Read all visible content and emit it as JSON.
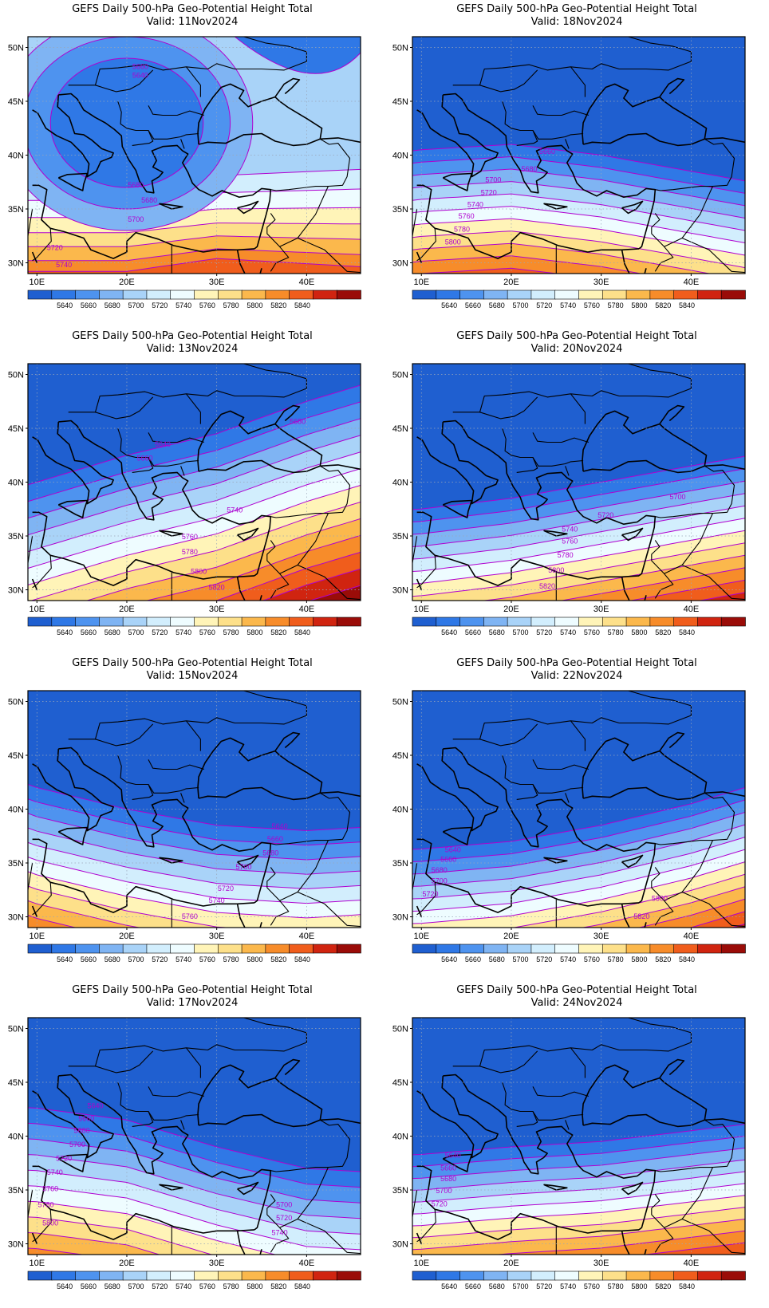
{
  "colors": {
    "contour_line": "#b000d0",
    "legend_levels": [
      "#1f5fd0",
      "#2f78e6",
      "#4e93ef",
      "#7fb4f3",
      "#a9d3f8",
      "#d2eefd",
      "#eefcff",
      "#fff4b8",
      "#fde08a",
      "#fbb84c",
      "#f78c2a",
      "#f05d1c",
      "#d02410",
      "#9a0c08"
    ]
  },
  "legend": {
    "labels": [
      "5640",
      "5660",
      "5680",
      "5700",
      "5720",
      "5740",
      "5760",
      "5780",
      "5800",
      "5820",
      "5840"
    ]
  },
  "axes": {
    "lat_labels": [
      "50N",
      "45N",
      "40N",
      "35N",
      "30N"
    ],
    "lon_labels": [
      "10E",
      "20E",
      "30E",
      "40E"
    ],
    "lat_range": [
      29,
      51
    ],
    "lon_range": [
      9,
      46
    ]
  },
  "panels": [
    {
      "title": "GEFS Daily 500-hPa Geo-Potential Height Total",
      "valid": "Valid: 11Nov2024",
      "contour_labels": [
        {
          "text": "5660",
          "lon": 21.5,
          "lat": 48.0
        },
        {
          "text": "5640",
          "lon": 21.5,
          "lat": 47.2
        },
        {
          "text": "5680",
          "lon": 21.0,
          "lat": 37.0
        },
        {
          "text": "5680",
          "lon": 22.5,
          "lat": 35.6
        },
        {
          "text": "5700",
          "lon": 21.0,
          "lat": 33.8
        },
        {
          "text": "5720",
          "lon": 12.0,
          "lat": 31.2
        },
        {
          "text": "5740",
          "lon": 13.0,
          "lat": 29.6
        }
      ]
    },
    {
      "title": "GEFS Daily 500-hPa Geo-Potential Height Total",
      "valid": "Valid: 18Nov2024",
      "contour_labels": [
        {
          "text": "5660",
          "lon": 24.0,
          "lat": 40.1
        },
        {
          "text": "5680",
          "lon": 22.0,
          "lat": 38.5
        },
        {
          "text": "5700",
          "lon": 18.0,
          "lat": 37.5
        },
        {
          "text": "5720",
          "lon": 17.5,
          "lat": 36.3
        },
        {
          "text": "5740",
          "lon": 16.0,
          "lat": 35.2
        },
        {
          "text": "5760",
          "lon": 15.0,
          "lat": 34.1
        },
        {
          "text": "5780",
          "lon": 14.5,
          "lat": 32.9
        },
        {
          "text": "5800",
          "lon": 13.5,
          "lat": 31.7
        }
      ]
    },
    {
      "title": "GEFS Daily 500-hPa Geo-Potential Height Total",
      "valid": "Valid: 13Nov2024",
      "contour_labels": [
        {
          "text": "5680",
          "lon": 39.0,
          "lat": 45.4
        },
        {
          "text": "5640",
          "lon": 24.0,
          "lat": 43.3
        },
        {
          "text": "5660",
          "lon": 22.0,
          "lat": 42.0
        },
        {
          "text": "5740",
          "lon": 32.0,
          "lat": 37.2
        },
        {
          "text": "5760",
          "lon": 27.0,
          "lat": 34.7
        },
        {
          "text": "5780",
          "lon": 27.0,
          "lat": 33.3
        },
        {
          "text": "5800",
          "lon": 28.0,
          "lat": 31.5
        },
        {
          "text": "5820",
          "lon": 30.0,
          "lat": 30.0
        }
      ]
    },
    {
      "title": "GEFS Daily 500-hPa Geo-Potential Height Total",
      "valid": "Valid: 20Nov2024",
      "contour_labels": [
        {
          "text": "5700",
          "lon": 38.5,
          "lat": 38.4
        },
        {
          "text": "5720",
          "lon": 30.5,
          "lat": 36.7
        },
        {
          "text": "5740",
          "lon": 26.5,
          "lat": 35.4
        },
        {
          "text": "5760",
          "lon": 26.5,
          "lat": 34.3
        },
        {
          "text": "5780",
          "lon": 26.0,
          "lat": 33.0
        },
        {
          "text": "5800",
          "lon": 25.0,
          "lat": 31.6
        },
        {
          "text": "5820",
          "lon": 24.0,
          "lat": 30.1
        }
      ]
    },
    {
      "title": "GEFS Daily 500-hPa Geo-Potential Height Total",
      "valid": "Valid: 15Nov2024",
      "contour_labels": [
        {
          "text": "5640",
          "lon": 37.0,
          "lat": 38.2
        },
        {
          "text": "5660",
          "lon": 36.5,
          "lat": 37.0
        },
        {
          "text": "5680",
          "lon": 36.0,
          "lat": 35.7
        },
        {
          "text": "5700",
          "lon": 33.0,
          "lat": 34.4
        },
        {
          "text": "5720",
          "lon": 31.0,
          "lat": 32.4
        },
        {
          "text": "5740",
          "lon": 30.0,
          "lat": 31.3
        },
        {
          "text": "5760",
          "lon": 27.0,
          "lat": 29.8
        }
      ]
    },
    {
      "title": "GEFS Daily 500-hPa Geo-Potential Height Total",
      "valid": "Valid: 22Nov2024",
      "contour_labels": [
        {
          "text": "5640",
          "lon": 13.5,
          "lat": 36.0
        },
        {
          "text": "5660",
          "lon": 13.0,
          "lat": 35.1
        },
        {
          "text": "5680",
          "lon": 12.0,
          "lat": 34.1
        },
        {
          "text": "5700",
          "lon": 12.0,
          "lat": 33.1
        },
        {
          "text": "5720",
          "lon": 11.0,
          "lat": 31.9
        },
        {
          "text": "5800",
          "lon": 36.5,
          "lat": 31.5
        },
        {
          "text": "5820",
          "lon": 34.5,
          "lat": 29.8
        }
      ]
    },
    {
      "title": "GEFS Daily 500-hPa Geo-Potential Height Total",
      "valid": "Valid: 17Nov2024",
      "contour_labels": [
        {
          "text": "5640",
          "lon": 16.5,
          "lat": 42.6
        },
        {
          "text": "5660",
          "lon": 15.5,
          "lat": 41.4
        },
        {
          "text": "5680",
          "lon": 15.0,
          "lat": 40.3
        },
        {
          "text": "5700",
          "lon": 14.5,
          "lat": 39.0
        },
        {
          "text": "5720",
          "lon": 13.0,
          "lat": 37.7
        },
        {
          "text": "5740",
          "lon": 12.0,
          "lat": 36.4
        },
        {
          "text": "5760",
          "lon": 11.5,
          "lat": 34.9
        },
        {
          "text": "5780",
          "lon": 11.0,
          "lat": 33.4
        },
        {
          "text": "5800",
          "lon": 11.5,
          "lat": 31.7
        },
        {
          "text": "5700",
          "lon": 37.5,
          "lat": 33.4
        },
        {
          "text": "5720",
          "lon": 37.5,
          "lat": 32.2
        },
        {
          "text": "5740",
          "lon": 37.0,
          "lat": 30.8
        }
      ]
    },
    {
      "title": "GEFS Daily 500-hPa Geo-Potential Height Total",
      "valid": "Valid: 24Nov2024",
      "contour_labels": [
        {
          "text": "5640",
          "lon": 13.5,
          "lat": 38.0
        },
        {
          "text": "5660",
          "lon": 13.0,
          "lat": 36.8
        },
        {
          "text": "5680",
          "lon": 13.0,
          "lat": 35.8
        },
        {
          "text": "5700",
          "lon": 12.5,
          "lat": 34.7
        },
        {
          "text": "5720",
          "lon": 12.0,
          "lat": 33.5
        }
      ]
    }
  ]
}
